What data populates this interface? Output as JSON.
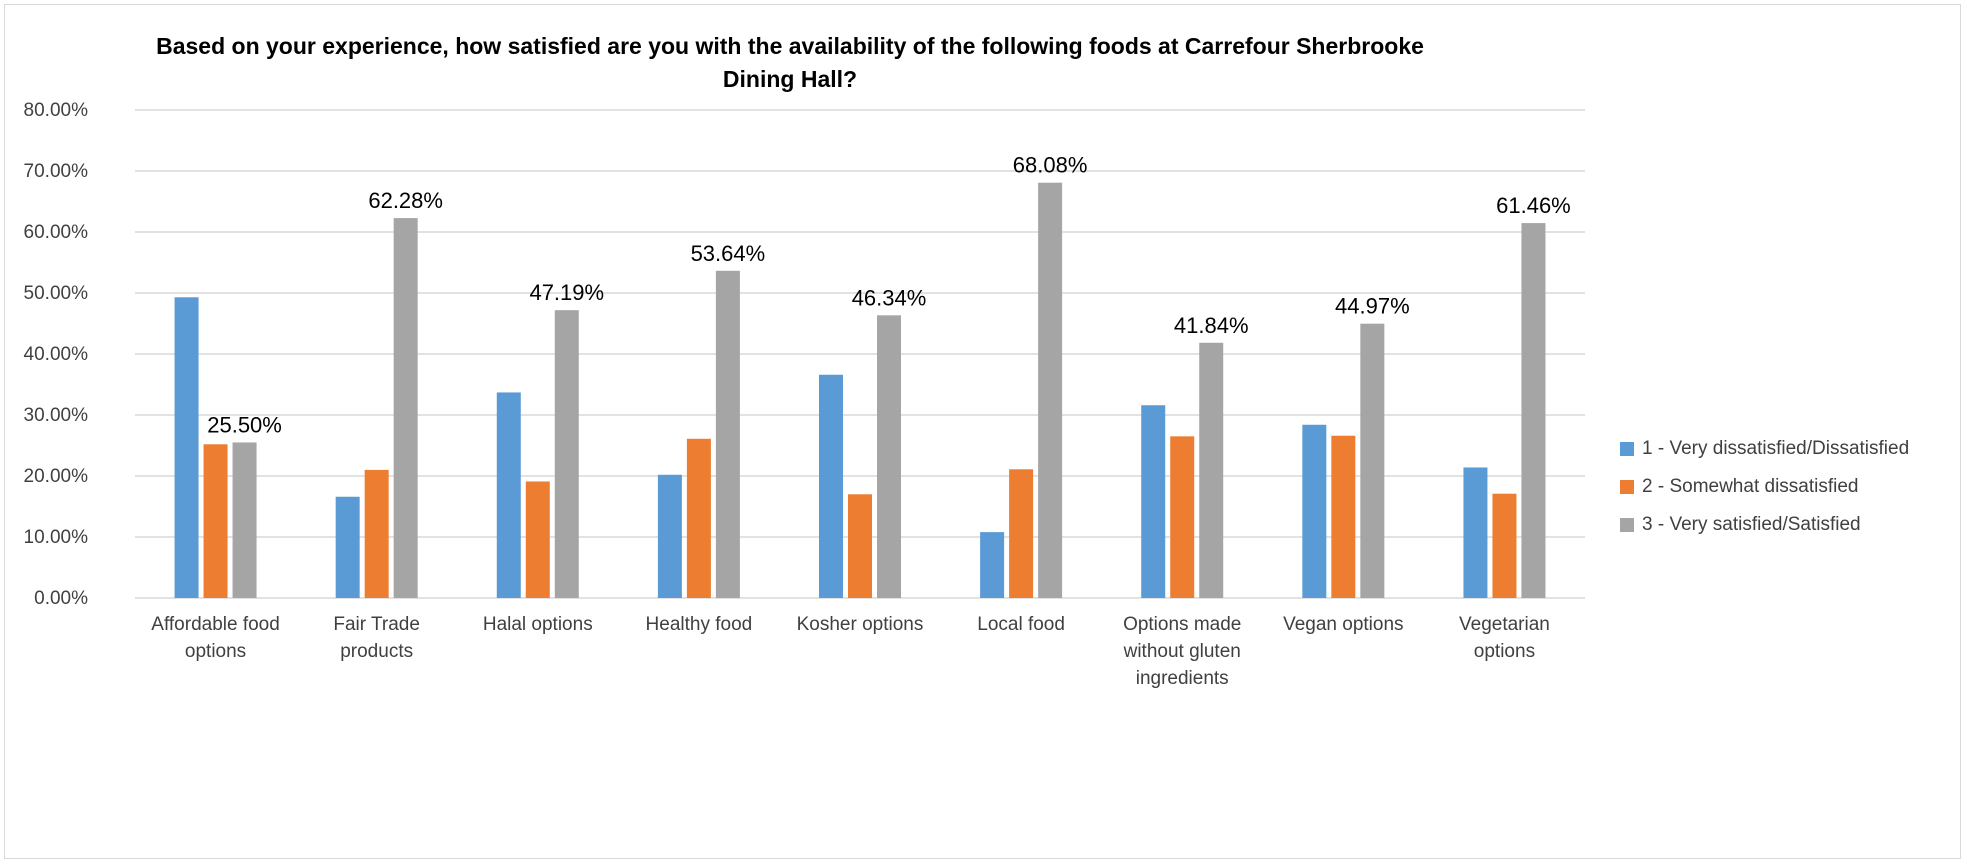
{
  "chart_data": {
    "type": "bar",
    "title": "Based on your experience, how satisfied are you with the availability of the following foods at Carrefour Sherbrooke\nDining Hall?",
    "categories": [
      [
        "Affordable food",
        "options"
      ],
      [
        "Fair Trade",
        "products"
      ],
      [
        "Halal options"
      ],
      [
        "Healthy food"
      ],
      [
        "Kosher options"
      ],
      [
        "Local food"
      ],
      [
        "Options made",
        "without gluten",
        "ingredients"
      ],
      [
        "Vegan options"
      ],
      [
        "Vegetarian",
        "options"
      ]
    ],
    "series": [
      {
        "name": "1 - Very dissatisfied/Dissatisfied",
        "color": "#5b9bd5",
        "values": [
          49.3,
          16.6,
          33.7,
          20.2,
          36.6,
          10.8,
          31.6,
          28.4,
          21.4
        ]
      },
      {
        "name": "2 - Somewhat dissatisfied",
        "color": "#ed7d31",
        "values": [
          25.2,
          21.0,
          19.1,
          26.1,
          17.0,
          21.1,
          26.5,
          26.6,
          17.1
        ]
      },
      {
        "name": "3 - Very satisfied/Satisfied",
        "color": "#a5a5a5",
        "values": [
          25.5,
          62.28,
          47.19,
          53.64,
          46.34,
          68.08,
          41.84,
          44.97,
          61.46
        ]
      }
    ],
    "data_labels": [
      "25.50%",
      "62.28%",
      "47.19%",
      "53.64%",
      "46.34%",
      "68.08%",
      "41.84%",
      "44.97%",
      "61.46%"
    ],
    "data_labels_series": 2,
    "ylim": [
      0,
      80
    ],
    "yticks": [
      0,
      10,
      20,
      30,
      40,
      50,
      60,
      70,
      80
    ],
    "ytick_labels": [
      "0.00%",
      "10.00%",
      "20.00%",
      "30.00%",
      "40.00%",
      "50.00%",
      "60.00%",
      "70.00%",
      "80.00%"
    ],
    "xlabel": "",
    "ylabel": "",
    "grid": true,
    "legend_position": "right",
    "gridline_color": "#d9d9d9"
  }
}
